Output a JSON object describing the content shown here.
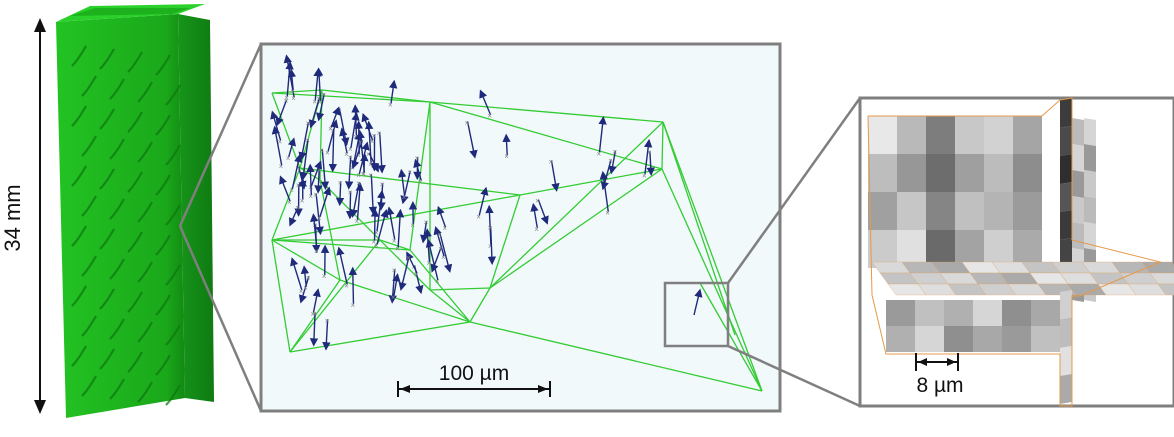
{
  "specimen": {
    "height_label": "34 mm",
    "color": "#1fb51f"
  },
  "mesh_panel": {
    "scale_label": "100 µm",
    "background": "#f1f9fb",
    "edge_color": "#33cc33",
    "arrow_color": "#1f2a7a"
  },
  "voxel_panel": {
    "scale_label": "8 µm"
  },
  "frame_color": "#7f7f7f"
}
